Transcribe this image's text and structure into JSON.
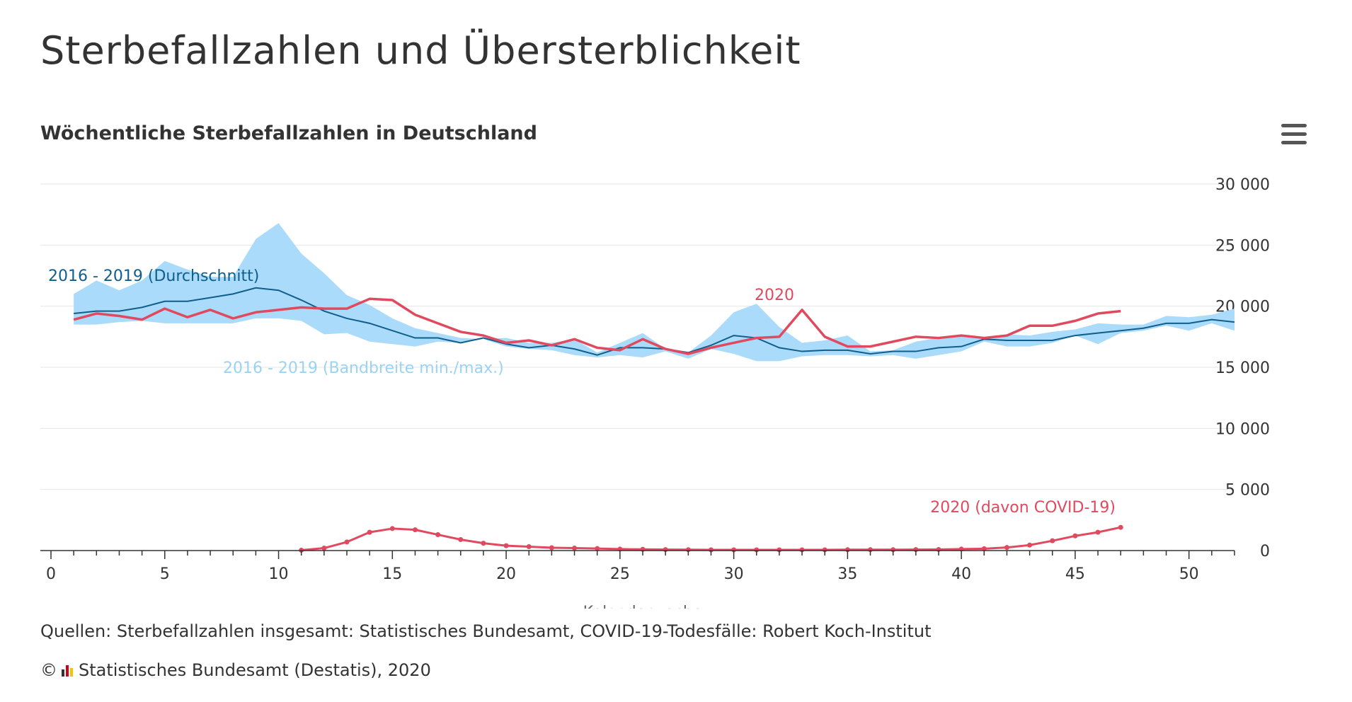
{
  "page_title": "Sterbefallzahlen und Übersterblichkeit",
  "chart_title": "Wöchentliche Sterbefallzahlen in Deutschland",
  "menu_icon": "hamburger-menu-icon",
  "source_note": "Quellen: Sterbefallzahlen insgesamt: Statistisches Bundesamt, COVID-19-Todesfälle: Robert Koch-Institut",
  "copyright": {
    "symbol": "©",
    "logo_icon": "destatis-logo-icon",
    "text": "Statistisches Bundesamt (Destatis), 2020"
  },
  "chart_data": {
    "type": "line",
    "xlabel": "Kalenderwoche",
    "ylabel": "",
    "xlim": [
      0,
      52
    ],
    "ylim": [
      0,
      30000
    ],
    "x_ticks": [
      0,
      5,
      10,
      15,
      20,
      25,
      30,
      35,
      40,
      45,
      50
    ],
    "y_ticks": [
      0,
      5000,
      10000,
      15000,
      20000,
      25000,
      30000
    ],
    "y_tick_labels": [
      "0",
      "5 000",
      "10 000",
      "15 000",
      "20 000",
      "25 000",
      "30 000"
    ],
    "grid": true,
    "legend": "inline labels",
    "colors": {
      "band": "#aadbfa",
      "band_label": "#9bd3f5",
      "average": "#0f5e8c",
      "line_2020": "#e04a5f",
      "covid": "#e04a5f"
    },
    "series": [
      {
        "name": "2016 - 2019 (Bandbreite min./max.)",
        "kind": "range",
        "x": [
          1,
          2,
          3,
          4,
          5,
          6,
          7,
          8,
          9,
          10,
          11,
          12,
          13,
          14,
          15,
          16,
          17,
          18,
          19,
          20,
          21,
          22,
          23,
          24,
          25,
          26,
          27,
          28,
          29,
          30,
          31,
          32,
          33,
          34,
          35,
          36,
          37,
          38,
          39,
          40,
          41,
          42,
          43,
          44,
          45,
          46,
          47,
          48,
          49,
          50,
          51,
          52
        ],
        "min": [
          18500,
          18500,
          18700,
          18800,
          18600,
          18600,
          18600,
          18600,
          19000,
          19000,
          18800,
          17700,
          17800,
          17100,
          16900,
          16700,
          17100,
          17000,
          17300,
          16700,
          16500,
          16400,
          16000,
          15800,
          16000,
          15800,
          16300,
          15700,
          16500,
          16100,
          15500,
          15500,
          15900,
          16000,
          16000,
          15900,
          16000,
          15700,
          16000,
          16300,
          17100,
          16700,
          16700,
          17000,
          17600,
          16900,
          17800,
          18000,
          18400,
          18000,
          18600,
          18000
        ],
        "max": [
          21000,
          22100,
          21300,
          22100,
          23700,
          23000,
          22400,
          22400,
          25500,
          26800,
          24300,
          22700,
          20900,
          20100,
          19000,
          18200,
          17800,
          17400,
          17300,
          17400,
          17000,
          17000,
          17300,
          16200,
          17000,
          17800,
          16500,
          16200,
          17600,
          19500,
          20200,
          18300,
          17000,
          17200,
          17600,
          16300,
          16400,
          17100,
          17400,
          17500,
          17300,
          17700,
          17600,
          17900,
          18100,
          18600,
          18500,
          18500,
          19200,
          19100,
          19300,
          19800
        ]
      },
      {
        "name": "2016 - 2019 (Durchschnitt)",
        "kind": "line",
        "x": [
          1,
          2,
          3,
          4,
          5,
          6,
          7,
          8,
          9,
          10,
          11,
          12,
          13,
          14,
          15,
          16,
          17,
          18,
          19,
          20,
          21,
          22,
          23,
          24,
          25,
          26,
          27,
          28,
          29,
          30,
          31,
          32,
          33,
          34,
          35,
          36,
          37,
          38,
          39,
          40,
          41,
          42,
          43,
          44,
          45,
          46,
          47,
          48,
          49,
          50,
          51,
          52
        ],
        "y": [
          19400,
          19600,
          19600,
          19900,
          20400,
          20400,
          20700,
          21000,
          21500,
          21300,
          20500,
          19600,
          19000,
          18600,
          18000,
          17400,
          17400,
          17000,
          17400,
          16900,
          16600,
          16800,
          16500,
          16000,
          16600,
          16600,
          16500,
          16200,
          16800,
          17600,
          17400,
          16600,
          16300,
          16400,
          16400,
          16100,
          16300,
          16300,
          16600,
          16700,
          17300,
          17200,
          17200,
          17200,
          17600,
          17800,
          18000,
          18200,
          18600,
          18600,
          18900,
          18700
        ]
      },
      {
        "name": "2020",
        "kind": "line",
        "x": [
          1,
          2,
          3,
          4,
          5,
          6,
          7,
          8,
          9,
          10,
          11,
          12,
          13,
          14,
          15,
          16,
          17,
          18,
          19,
          20,
          21,
          22,
          23,
          24,
          25,
          26,
          27,
          28,
          29,
          30,
          31,
          32,
          33,
          34,
          35,
          36,
          37,
          38,
          39,
          40,
          41,
          42,
          43,
          44,
          45,
          46,
          47
        ],
        "y": [
          18900,
          19400,
          19200,
          18900,
          19800,
          19100,
          19700,
          19000,
          19500,
          19700,
          19900,
          19800,
          19800,
          20600,
          20500,
          19300,
          18600,
          17900,
          17600,
          17000,
          17200,
          16800,
          17300,
          16600,
          16400,
          17300,
          16500,
          16100,
          16600,
          17000,
          17400,
          17500,
          19700,
          17500,
          16700,
          16700,
          17100,
          17500,
          17400,
          17600,
          17400,
          17600,
          18400,
          18400,
          18800,
          19400,
          19600
        ]
      },
      {
        "name": "2020 (davon COVID-19)",
        "kind": "line-markers",
        "x": [
          11,
          12,
          13,
          14,
          15,
          16,
          17,
          18,
          19,
          20,
          21,
          22,
          23,
          24,
          25,
          26,
          27,
          28,
          29,
          30,
          31,
          32,
          33,
          34,
          35,
          36,
          37,
          38,
          39,
          40,
          41,
          42,
          43,
          44,
          45,
          46,
          47
        ],
        "y": [
          30,
          200,
          700,
          1500,
          1800,
          1700,
          1300,
          900,
          600,
          400,
          320,
          230,
          200,
          170,
          120,
          100,
          80,
          70,
          60,
          60,
          60,
          60,
          60,
          60,
          70,
          70,
          70,
          80,
          90,
          120,
          150,
          250,
          450,
          800,
          1200,
          1500,
          1900
        ]
      }
    ]
  }
}
